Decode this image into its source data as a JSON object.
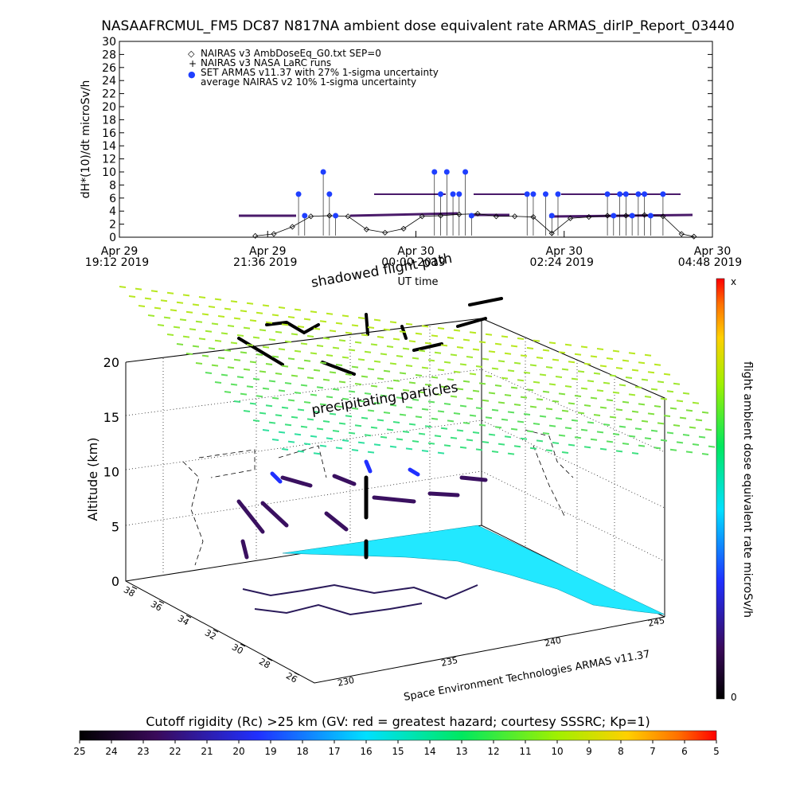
{
  "chart_data": [
    {
      "type": "scatter",
      "title": "NASAAFRCMUL_FM5 DC87 N817NA ambient dose equivalent rate ARMAS_dirIP_Report_03440",
      "xlabel": "UT time",
      "ylabel": "dH*(10)/dt microSv/h",
      "ylim": [
        0,
        30
      ],
      "y_ticks": [
        "0",
        "2",
        "4",
        "6",
        "8",
        "10",
        "12",
        "14",
        "16",
        "18",
        "20",
        "22",
        "24",
        "26",
        "28",
        "30"
      ],
      "x_ticks": [
        {
          "line1": "Apr 29",
          "line2": "19:12 2019"
        },
        {
          "line1": "Apr 29",
          "line2": "21:36 2019"
        },
        {
          "line1": "Apr 30",
          "line2": "00:00 2019"
        },
        {
          "line1": "Apr 30",
          "line2": "02:24 2019"
        },
        {
          "line1": "Apr 30",
          "line2": "04:48 2019"
        }
      ],
      "x_hours": {
        "start": 0,
        "end": 9.6,
        "tick_step": 2.4,
        "note_start": "Apr 29 19:12 UT"
      },
      "legend": [
        {
          "marker": "◇",
          "label": "NAIRAS v3 AmbDoseEq_G0.txt SEP=0"
        },
        {
          "marker": "+",
          "label": "NAIRAS v3 NASA LaRC runs"
        },
        {
          "marker": "●",
          "label": "SET ARMAS v11.37 with 27% 1-sigma uncertainty"
        },
        {
          "marker": "",
          "label": "average NAIRAS v2 10% 1-sigma uncertainty"
        }
      ],
      "legend_position": "top-left",
      "series": [
        {
          "name": "NAIRAS v3 AmbDoseEq_G0.txt SEP=0",
          "x": [
            2.2,
            2.5,
            2.8,
            3.1,
            3.4,
            3.7,
            4.0,
            4.3,
            4.6,
            4.9,
            5.2,
            5.5,
            5.8,
            6.1,
            6.4,
            6.7,
            7.0,
            7.3,
            7.6,
            7.9,
            8.2,
            8.5,
            8.8,
            9.1,
            9.3
          ],
          "y": [
            0.2,
            0.5,
            1.6,
            3.2,
            3.3,
            3.2,
            1.2,
            0.7,
            1.3,
            3.2,
            3.3,
            3.5,
            3.6,
            3.2,
            3.2,
            3.1,
            0.6,
            2.9,
            3.1,
            3.3,
            3.3,
            3.4,
            3.2,
            0.5,
            0.1
          ]
        },
        {
          "name": "SET ARMAS v11.37 with 27% 1-sigma uncertainty",
          "x": [
            2.9,
            3.0,
            3.3,
            3.4,
            3.5,
            5.1,
            5.2,
            5.3,
            5.4,
            5.5,
            5.6,
            5.7,
            6.6,
            6.7,
            6.9,
            7.0,
            7.1,
            7.9,
            8.0,
            8.1,
            8.2,
            8.3,
            8.4,
            8.5,
            8.6,
            8.8
          ],
          "y": [
            6.6,
            3.3,
            10.0,
            6.6,
            3.3,
            10.0,
            6.6,
            10.0,
            6.6,
            6.6,
            10.0,
            3.3,
            6.6,
            6.6,
            6.6,
            3.3,
            6.6,
            6.6,
            3.3,
            6.6,
            6.6,
            3.3,
            6.6,
            6.6,
            3.3,
            6.6
          ]
        }
      ]
    },
    {
      "type": "scatter",
      "ylabel": "Altitude (km)",
      "xlabel": "Space Environment Technologies ARMAS v11.37",
      "ylim": [
        0,
        20
      ],
      "z_ticks": [
        "0",
        "5",
        "10",
        "15",
        "20"
      ],
      "lat_ticks": [
        "38",
        "36",
        "34",
        "32",
        "30",
        "28",
        "26"
      ],
      "lon_ticks": [
        "230",
        "235",
        "240",
        "245"
      ],
      "annotations": [
        "shadowed flight path",
        "precipitating particles"
      ]
    }
  ],
  "colorbars": {
    "vertical": {
      "label": "flight ambient dose equivalent rate microSv/h",
      "top_label": "x",
      "bottom_label": "0"
    },
    "horizontal": {
      "title": "Cutoff rigidity (Rc) >25 km (GV: red = greatest hazard; courtesy SSSRC; Kp=1)",
      "ticks": [
        "25",
        "24",
        "23",
        "22",
        "21",
        "20",
        "19",
        "18",
        "17",
        "16",
        "15",
        "14",
        "13",
        "12",
        "11",
        "10",
        "9",
        "8",
        "7",
        "6",
        "5"
      ]
    }
  },
  "colors": {
    "armas_points": "#1f3fff",
    "nairas_points": "#000000",
    "track_purple": "#4a1a6a",
    "shadow_surface": "#22e8ff",
    "particles": "#39e07a"
  }
}
